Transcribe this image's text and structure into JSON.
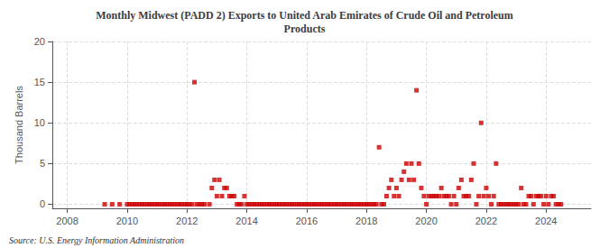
{
  "chart_data": {
    "type": "scatter",
    "title": "Monthly Midwest (PADD 2) Exports to United Arab Emirates of Crude Oil and Petroleum\nProducts",
    "ylabel": "Thousand Barrels",
    "annotations": [
      "Source: U.S. Energy Information Administration"
    ],
    "color": "#cc0000",
    "marker": "square",
    "grid": true,
    "xlim": [
      2007.5,
      2025.5
    ],
    "xticks": [
      2008,
      2010,
      2012,
      2014,
      2016,
      2018,
      2020,
      2022,
      2024
    ],
    "ylim": [
      -0.5,
      20
    ],
    "yticks": [
      0,
      5,
      10,
      15,
      20
    ],
    "x": [
      2009.25,
      2009.5,
      2009.75,
      2010.0,
      2010.08,
      2010.17,
      2010.25,
      2010.33,
      2010.42,
      2010.5,
      2010.58,
      2010.67,
      2010.75,
      2010.83,
      2010.92,
      2011.0,
      2011.08,
      2011.17,
      2011.25,
      2011.33,
      2011.42,
      2011.5,
      2011.58,
      2011.67,
      2011.75,
      2011.83,
      2011.92,
      2012.0,
      2012.08,
      2012.17,
      2012.25,
      2012.33,
      2012.42,
      2012.5,
      2012.58,
      2012.75,
      2012.83,
      2012.92,
      2013.0,
      2013.08,
      2013.17,
      2013.25,
      2013.33,
      2013.42,
      2013.5,
      2013.58,
      2013.67,
      2013.75,
      2013.83,
      2013.92,
      2014.0,
      2014.08,
      2014.17,
      2014.25,
      2014.33,
      2014.42,
      2014.5,
      2014.58,
      2014.67,
      2014.75,
      2014.83,
      2014.92,
      2015.0,
      2015.08,
      2015.17,
      2015.25,
      2015.33,
      2015.42,
      2015.5,
      2015.58,
      2015.67,
      2015.75,
      2015.83,
      2015.92,
      2016.0,
      2016.08,
      2016.17,
      2016.25,
      2016.33,
      2016.42,
      2016.5,
      2016.58,
      2016.67,
      2016.75,
      2016.83,
      2016.92,
      2017.0,
      2017.08,
      2017.17,
      2017.25,
      2017.33,
      2017.42,
      2017.5,
      2017.58,
      2017.67,
      2017.75,
      2017.83,
      2017.92,
      2018.0,
      2018.08,
      2018.17,
      2018.25,
      2018.33,
      2018.42,
      2018.5,
      2018.58,
      2018.67,
      2018.75,
      2018.83,
      2018.92,
      2019.0,
      2019.08,
      2019.17,
      2019.25,
      2019.33,
      2019.42,
      2019.5,
      2019.58,
      2019.67,
      2019.75,
      2019.83,
      2019.92,
      2020.0,
      2020.08,
      2020.17,
      2020.25,
      2020.33,
      2020.42,
      2020.5,
      2020.58,
      2020.67,
      2020.75,
      2020.83,
      2020.92,
      2021.0,
      2021.08,
      2021.17,
      2021.25,
      2021.33,
      2021.42,
      2021.5,
      2021.58,
      2021.67,
      2021.75,
      2021.83,
      2021.92,
      2022.0,
      2022.08,
      2022.17,
      2022.25,
      2022.33,
      2022.42,
      2022.5,
      2022.58,
      2022.67,
      2022.75,
      2022.83,
      2022.92,
      2023.0,
      2023.08,
      2023.17,
      2023.25,
      2023.33,
      2023.42,
      2023.5,
      2023.58,
      2023.67,
      2023.75,
      2023.83,
      2023.92,
      2024.0,
      2024.08,
      2024.17,
      2024.25,
      2024.33,
      2024.42,
      2024.5
    ],
    "values": [
      0,
      0,
      0,
      0,
      0,
      0,
      0,
      0,
      0,
      0,
      0,
      0,
      0,
      0,
      0,
      0,
      0,
      0,
      0,
      0,
      0,
      0,
      0,
      0,
      0,
      0,
      0,
      0,
      0,
      0,
      15,
      0,
      0,
      0,
      0,
      0,
      2,
      3,
      1,
      3,
      1,
      2,
      2,
      1,
      1,
      1,
      0,
      0,
      0,
      1,
      0,
      0,
      0,
      0,
      0,
      0,
      0,
      0,
      0,
      0,
      0,
      0,
      0,
      0,
      0,
      0,
      0,
      0,
      0,
      0,
      0,
      0,
      0,
      0,
      0,
      0,
      0,
      0,
      0,
      0,
      0,
      0,
      0,
      0,
      0,
      0,
      0,
      0,
      0,
      0,
      0,
      0,
      0,
      0,
      0,
      0,
      0,
      0,
      0,
      0,
      0,
      0,
      0,
      7,
      0,
      0,
      1,
      2,
      3,
      1,
      2,
      1,
      3,
      4,
      5,
      3,
      5,
      3,
      14,
      5,
      2,
      1,
      0,
      1,
      1,
      1,
      1,
      1,
      2,
      1,
      1,
      1,
      0,
      1,
      0,
      2,
      3,
      1,
      1,
      1,
      3,
      5,
      0,
      1,
      10,
      1,
      2,
      1,
      0,
      1,
      5,
      0,
      0,
      0,
      0,
      0,
      0,
      0,
      0,
      0,
      2,
      0,
      0,
      1,
      1,
      0,
      1,
      1,
      1,
      0,
      1,
      0,
      1,
      1,
      0,
      0,
      0
    ]
  }
}
